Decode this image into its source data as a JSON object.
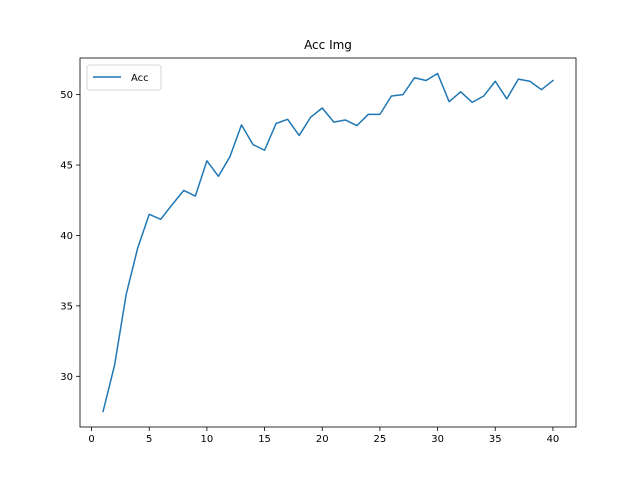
{
  "chart_data": {
    "type": "line",
    "title": "Acc Img",
    "xlabel": "",
    "ylabel": "",
    "xlim": [
      -1,
      42
    ],
    "ylim": [
      26.4,
      52.6
    ],
    "xticks": [
      0,
      5,
      10,
      15,
      20,
      25,
      30,
      35,
      40
    ],
    "yticks": [
      30,
      35,
      40,
      45,
      50
    ],
    "grid": false,
    "legend_position": "top-left",
    "series": [
      {
        "name": "Acc",
        "color": "#1f77b4",
        "x": [
          1,
          2,
          3,
          4,
          5,
          6,
          7,
          8,
          9,
          10,
          11,
          12,
          13,
          14,
          15,
          16,
          17,
          18,
          19,
          20,
          21,
          22,
          23,
          24,
          25,
          26,
          27,
          28,
          29,
          30,
          31,
          32,
          33,
          34,
          35,
          36,
          37,
          38,
          39,
          40
        ],
        "y": [
          27.5,
          30.8,
          35.8,
          39.1,
          41.5,
          41.15,
          42.2,
          43.2,
          42.8,
          45.3,
          44.2,
          45.6,
          47.85,
          46.45,
          46.05,
          47.95,
          48.25,
          47.1,
          48.4,
          49.05,
          48.05,
          48.2,
          47.8,
          48.6,
          48.6,
          49.9,
          50.0,
          51.2,
          51.0,
          51.5,
          49.5,
          50.2,
          49.45,
          49.9,
          50.95,
          49.7,
          51.1,
          50.95,
          50.35,
          51.0
        ]
      }
    ]
  }
}
